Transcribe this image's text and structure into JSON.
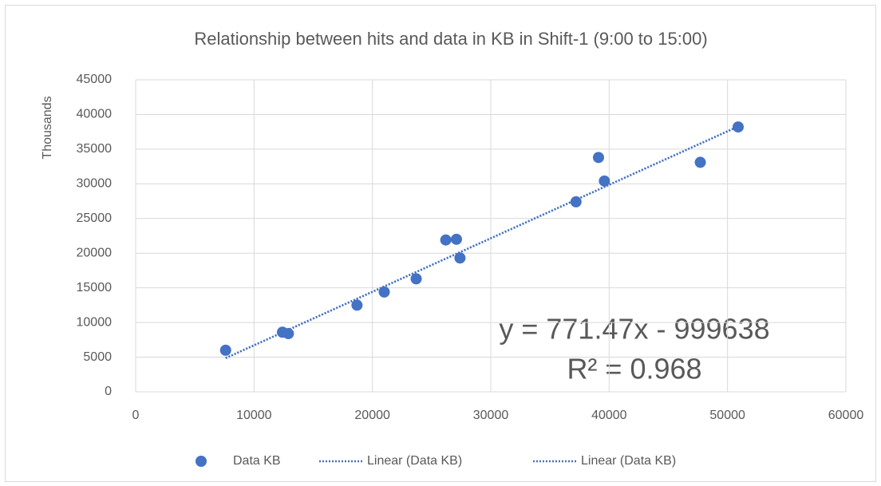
{
  "chart_data": {
    "type": "scatter",
    "title": "Relationship between hits and data in KB in Shift-1 (9:00 to 15:00)",
    "ylabel": "Thousands",
    "series": [
      {
        "name": "Data KB",
        "color": "#4472c4",
        "style": "marker",
        "x": [
          7600,
          12400,
          12900,
          18700,
          21000,
          23700,
          26200,
          27100,
          27400,
          37200,
          39100,
          39600,
          47700,
          50900
        ],
        "values": [
          6000,
          8600,
          8400,
          12500,
          14400,
          16300,
          21900,
          22000,
          19300,
          27400,
          33800,
          30400,
          33100,
          38200
        ]
      },
      {
        "name": "Linear (Data KB)",
        "color": "#4472c4",
        "style": "dotted",
        "x": [
          7600,
          51200
        ],
        "values": [
          4860,
          38500
        ]
      },
      {
        "name": "Linear (Data KB)",
        "color": "#4472c4",
        "style": "dotted",
        "x": [
          7600,
          51200
        ],
        "values": [
          4860,
          38500
        ]
      }
    ],
    "annotations": [
      "y = 771.47x - 999638",
      "R² = 0.968"
    ],
    "xlim": [
      0,
      60000
    ],
    "xticks": [
      0,
      10000,
      20000,
      30000,
      40000,
      50000,
      60000
    ],
    "ylim": [
      0,
      45000
    ],
    "yticks": [
      0,
      5000,
      10000,
      15000,
      20000,
      25000,
      30000,
      35000,
      40000,
      45000
    ],
    "grid": true
  }
}
